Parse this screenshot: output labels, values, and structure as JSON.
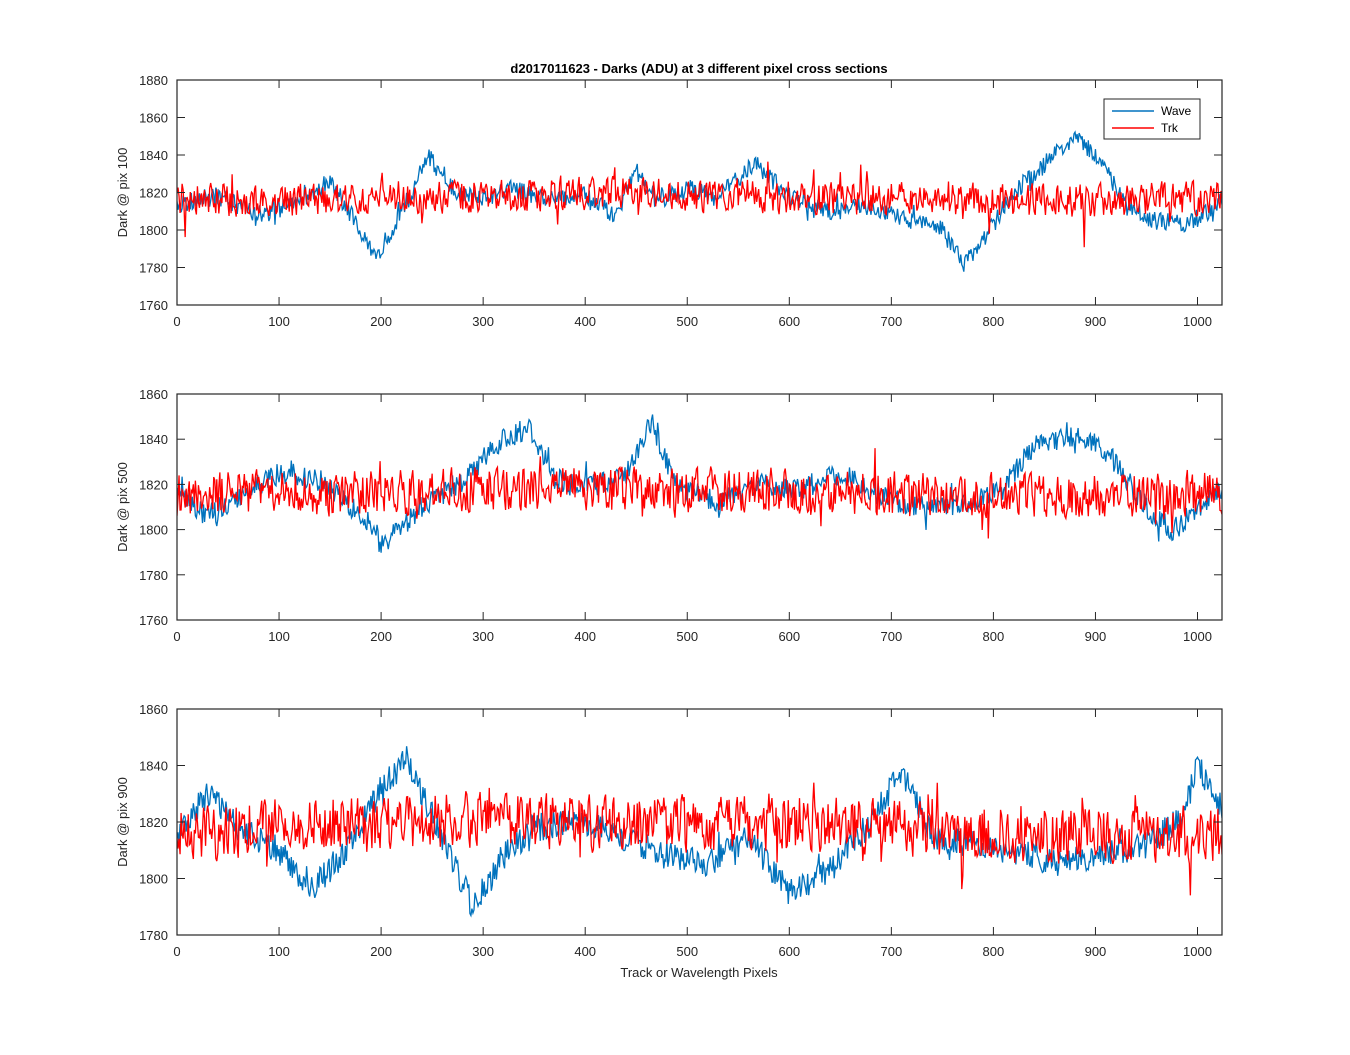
{
  "figure": {
    "background": "#ffffff"
  },
  "chart_data": [
    {
      "type": "line",
      "title": "d2017011623 - Darks (ADU) at 3 different pixel cross sections",
      "xlabel": "",
      "ylabel": "Dark @ pix 100",
      "xlim": [
        0,
        1024
      ],
      "ylim": [
        1760,
        1880
      ],
      "xticks": [
        0,
        100,
        200,
        300,
        400,
        500,
        600,
        700,
        800,
        900,
        1000
      ],
      "yticks": [
        1760,
        1780,
        1800,
        1820,
        1840,
        1860,
        1880
      ],
      "grid": false,
      "legend": {
        "position": "top-right",
        "entries": [
          "Wave",
          "Trk"
        ]
      },
      "series": [
        {
          "name": "Wave",
          "color": "#0072bd",
          "x": [
            0,
            40,
            80,
            120,
            150,
            180,
            195,
            210,
            230,
            245,
            270,
            300,
            330,
            360,
            400,
            430,
            450,
            470,
            500,
            530,
            565,
            600,
            640,
            680,
            720,
            750,
            770,
            790,
            820,
            850,
            880,
            905,
            930,
            960,
            990,
            1024
          ],
          "y": [
            1814,
            1818,
            1808,
            1815,
            1826,
            1800,
            1786,
            1800,
            1820,
            1840,
            1822,
            1816,
            1822,
            1816,
            1818,
            1808,
            1832,
            1815,
            1822,
            1817,
            1836,
            1818,
            1810,
            1813,
            1805,
            1800,
            1782,
            1795,
            1820,
            1835,
            1850,
            1838,
            1812,
            1805,
            1803,
            1815
          ]
        },
        {
          "name": "Trk",
          "color": "#ff0000",
          "x": [
            0,
            100,
            200,
            300,
            400,
            500,
            600,
            700,
            800,
            900,
            1024
          ],
          "y": [
            1817,
            1816,
            1817,
            1818,
            1820,
            1819,
            1818,
            1817,
            1816,
            1816,
            1817
          ],
          "noise_amplitude": 10
        }
      ]
    },
    {
      "type": "line",
      "title": "",
      "xlabel": "",
      "ylabel": "Dark @ pix 500",
      "xlim": [
        0,
        1024
      ],
      "ylim": [
        1760,
        1860
      ],
      "xticks": [
        0,
        100,
        200,
        300,
        400,
        500,
        600,
        700,
        800,
        900,
        1000
      ],
      "yticks": [
        1760,
        1780,
        1800,
        1820,
        1840,
        1860
      ],
      "grid": false,
      "series": [
        {
          "name": "Wave",
          "color": "#0072bd",
          "x": [
            0,
            30,
            60,
            100,
            140,
            175,
            205,
            240,
            280,
            320,
            345,
            370,
            410,
            440,
            465,
            490,
            530,
            570,
            610,
            650,
            700,
            740,
            780,
            810,
            840,
            880,
            910,
            950,
            975,
            1000,
            1024
          ],
          "y": [
            1815,
            1806,
            1815,
            1825,
            1822,
            1808,
            1795,
            1810,
            1822,
            1840,
            1845,
            1822,
            1820,
            1825,
            1848,
            1818,
            1812,
            1820,
            1818,
            1825,
            1813,
            1810,
            1812,
            1818,
            1838,
            1842,
            1835,
            1810,
            1798,
            1810,
            1818
          ]
        },
        {
          "name": "Trk",
          "color": "#ff0000",
          "x": [
            0,
            100,
            200,
            300,
            400,
            500,
            600,
            700,
            800,
            900,
            1024
          ],
          "y": [
            1815,
            1817,
            1816,
            1818,
            1819,
            1818,
            1817,
            1816,
            1815,
            1815,
            1816
          ],
          "noise_amplitude": 11
        }
      ]
    },
    {
      "type": "line",
      "title": "",
      "xlabel": "Track or Wavelength Pixels",
      "ylabel": "Dark @ pix 900",
      "xlim": [
        0,
        1024
      ],
      "ylim": [
        1780,
        1860
      ],
      "xticks": [
        0,
        100,
        200,
        300,
        400,
        500,
        600,
        700,
        800,
        900,
        1000
      ],
      "yticks": [
        1780,
        1800,
        1820,
        1840,
        1860
      ],
      "grid": false,
      "series": [
        {
          "name": "Wave",
          "color": "#0072bd",
          "x": [
            0,
            30,
            60,
            100,
            130,
            170,
            200,
            225,
            260,
            290,
            320,
            350,
            400,
            440,
            480,
            520,
            560,
            600,
            640,
            680,
            710,
            740,
            780,
            820,
            860,
            900,
            950,
            980,
            1000,
            1024
          ],
          "y": [
            1815,
            1830,
            1818,
            1810,
            1795,
            1812,
            1832,
            1842,
            1815,
            1790,
            1808,
            1818,
            1820,
            1814,
            1808,
            1805,
            1815,
            1795,
            1803,
            1820,
            1838,
            1815,
            1812,
            1810,
            1805,
            1808,
            1812,
            1820,
            1840,
            1825
          ]
        },
        {
          "name": "Trk",
          "color": "#ff0000",
          "x": [
            0,
            100,
            200,
            300,
            400,
            500,
            600,
            700,
            800,
            900,
            1024
          ],
          "y": [
            1816,
            1818,
            1820,
            1821,
            1820,
            1819,
            1820,
            1818,
            1816,
            1815,
            1816
          ],
          "noise_amplitude": 11
        }
      ]
    }
  ]
}
